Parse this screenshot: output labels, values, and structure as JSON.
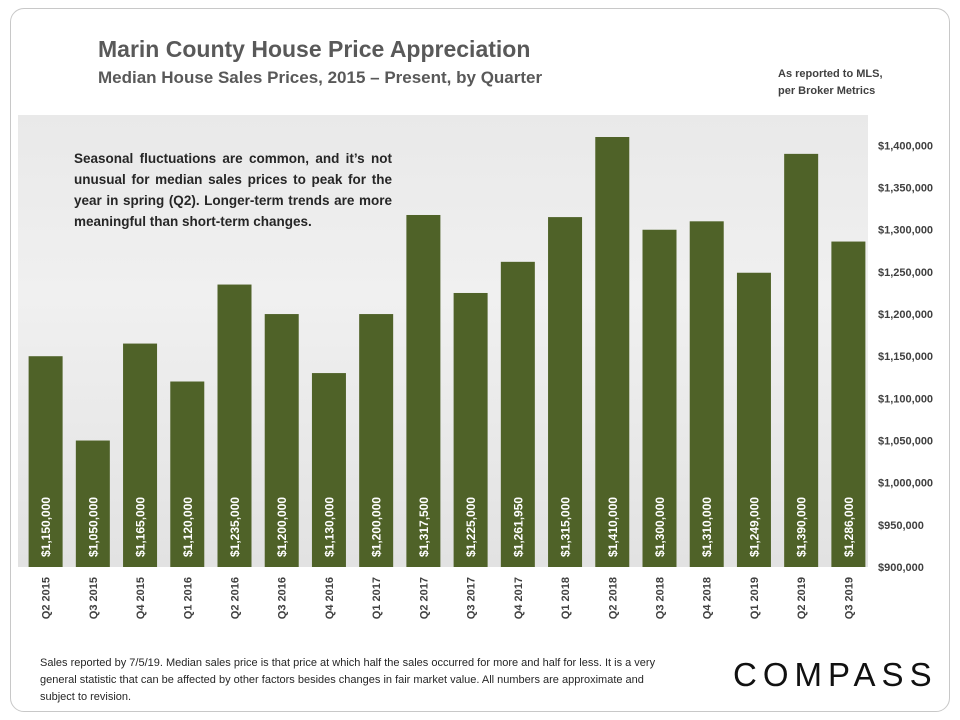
{
  "header": {
    "title": "Marin County House Price Appreciation",
    "subtitle": "Median House Sales Prices, 2015 – Present, by Quarter",
    "source_line1": "As reported to MLS,",
    "source_line2": "per Broker Metrics"
  },
  "annotation": "Seasonal fluctuations are common, and it’s not unusual for median sales prices to peak for the year in spring (Q2). Longer-term trends are more meaningful than short-term changes.",
  "footnote": "Sales reported by 7/5/19. Median sales price is that price at which half the sales occurred for more and half for less. It is a very general statistic that can be affected by other factors besides changes in fair market value. All numbers are approximate and subject to revision.",
  "brand": "COMPASS",
  "colors": {
    "bar": "#4f6228",
    "axis_text": "#404040"
  },
  "chart_data": {
    "type": "bar",
    "title": "Marin County House Price Appreciation",
    "subtitle": "Median House Sales Prices, 2015 – Present, by Quarter",
    "categories": [
      "Q2 2015",
      "Q3 2015",
      "Q4 2015",
      "Q1 2016",
      "Q2 2016",
      "Q3 2016",
      "Q4 2016",
      "Q1 2017",
      "Q2 2017",
      "Q3 2017",
      "Q4 2017",
      "Q1 2018",
      "Q2 2018",
      "Q3 2018",
      "Q4 2018",
      "Q1 2019",
      "Q2 2019",
      "Q3 2019"
    ],
    "values": [
      1150000,
      1050000,
      1165000,
      1120000,
      1235000,
      1200000,
      1130000,
      1200000,
      1317500,
      1225000,
      1261950,
      1315000,
      1410000,
      1300000,
      1310000,
      1249000,
      1390000,
      1286000
    ],
    "data_labels": [
      "$1,150,000",
      "$1,050,000",
      "$1,165,000",
      "$1,120,000",
      "$1,235,000",
      "$1,200,000",
      "$1,130,000",
      "$1,200,000",
      "$1,317,500",
      "$1,225,000",
      "$1,261,950",
      "$1,315,000",
      "$1,410,000",
      "$1,300,000",
      "$1,310,000",
      "$1,249,000",
      "$1,390,000",
      "$1,286,000"
    ],
    "ylim": [
      900000,
      1435000
    ],
    "yticks": [
      900000,
      950000,
      1000000,
      1050000,
      1100000,
      1150000,
      1200000,
      1250000,
      1300000,
      1350000,
      1400000
    ],
    "ytick_labels": [
      "$900,000",
      "$950,000",
      "$1,000,000",
      "$1,050,000",
      "$1,100,000",
      "$1,150,000",
      "$1,200,000",
      "$1,250,000",
      "$1,300,000",
      "$1,350,000",
      "$1,400,000"
    ],
    "y_axis_side": "right",
    "xlabel": "",
    "ylabel": "",
    "grid": false,
    "legend": "none"
  }
}
